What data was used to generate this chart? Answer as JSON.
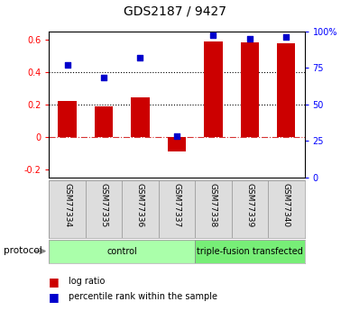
{
  "title": "GDS2187 / 9427",
  "samples": [
    "GSM77334",
    "GSM77335",
    "GSM77336",
    "GSM77337",
    "GSM77338",
    "GSM77339",
    "GSM77340"
  ],
  "log_ratio": [
    0.22,
    0.185,
    0.24,
    -0.09,
    0.585,
    0.58,
    0.575
  ],
  "percentile_rank": [
    77,
    68,
    82,
    28,
    97,
    95,
    96
  ],
  "groups": [
    {
      "label": "control",
      "start": 0,
      "end": 4,
      "color": "#aaffaa"
    },
    {
      "label": "triple-fusion transfected",
      "start": 4,
      "end": 7,
      "color": "#77ee77"
    }
  ],
  "bar_color": "#cc0000",
  "dot_color": "#0000cc",
  "ylim_left": [
    -0.25,
    0.65
  ],
  "ylim_right": [
    0,
    100
  ],
  "yticks_left": [
    -0.2,
    0.0,
    0.2,
    0.4,
    0.6
  ],
  "ytick_labels_left": [
    "-0.2",
    "0",
    "0.2",
    "0.4",
    "0.6"
  ],
  "yticks_right": [
    0,
    25,
    50,
    75,
    100
  ],
  "ytick_labels_right": [
    "0",
    "25",
    "50",
    "75",
    "100%"
  ],
  "hlines_dotted": [
    0.2,
    0.4
  ],
  "hline_dashdot": 0.0,
  "background_color": "#ffffff",
  "plot_bg": "#ffffff",
  "bar_width": 0.5,
  "legend_items": [
    "log ratio",
    "percentile rank within the sample"
  ],
  "legend_colors": [
    "#cc0000",
    "#0000cc"
  ]
}
